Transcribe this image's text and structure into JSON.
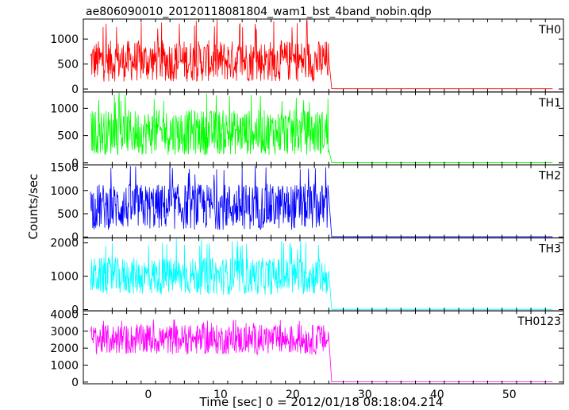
{
  "title": "ae806090010_20120118081804_wam1_bst_4band_nobin.qdp",
  "xlabel": "Time [sec] 0 = 2012/01/18 08:18:04.214",
  "ylabel": "Counts/sec",
  "chart_data": {
    "type": "line",
    "title": "ae806090010_20120118081804_wam1_bst_4band_nobin.qdp",
    "xlabel": "Time [sec] 0 = 2012/01/18 08:18:04.214",
    "ylabel": "Counts/sec",
    "xlim": [
      -9,
      57.5
    ],
    "xticks": [
      0,
      10,
      20,
      30,
      40,
      50
    ],
    "xtick_labels": [
      "0",
      "10",
      "20",
      "30",
      "40",
      "50"
    ],
    "grid": false,
    "legend": "none",
    "burst_start": -8,
    "burst_end": 25,
    "data_end": 56,
    "panels": [
      {
        "name": "TH0",
        "color": "#ff0000",
        "ylim": [
          -60,
          1400
        ],
        "yticks": [
          0,
          500,
          1000
        ],
        "ytick_labels": [
          "0",
          "500",
          "1000"
        ],
        "burst_mean": 560,
        "burst_spread": 520,
        "burst_min": 80,
        "burst_max": 1400,
        "post_level": 5
      },
      {
        "name": "TH1",
        "color": "#00ff00",
        "ylim": [
          -40,
          1300
        ],
        "yticks": [
          0,
          500,
          1000
        ],
        "ytick_labels": [
          "0",
          "500",
          "1000"
        ],
        "burst_mean": 560,
        "burst_spread": 520,
        "burst_min": 80,
        "burst_max": 1300,
        "post_level": 5
      },
      {
        "name": "TH2",
        "color": "#0000ff",
        "ylim": [
          -20,
          1550
        ],
        "yticks": [
          0,
          500,
          1000,
          1500
        ],
        "ytick_labels": [
          "0",
          "500",
          "1000",
          "1500"
        ],
        "burst_mean": 650,
        "burst_spread": 620,
        "burst_min": 80,
        "burst_max": 1550,
        "post_level": 5
      },
      {
        "name": "TH3",
        "color": "#00ffff",
        "ylim": [
          -40,
          2150
        ],
        "yticks": [
          0,
          1000,
          2000
        ],
        "ytick_labels": [
          "0",
          "1000",
          "2000"
        ],
        "burst_mean": 1000,
        "burst_spread": 700,
        "burst_min": 300,
        "burst_max": 2150,
        "post_level": 5
      },
      {
        "name": "TH0123",
        "color": "#ff00ff",
        "ylim": [
          -100,
          4200
        ],
        "yticks": [
          0,
          1000,
          2000,
          3000,
          4000
        ],
        "ytick_labels": [
          "0",
          "1000",
          "2000",
          "3000",
          "4000"
        ],
        "burst_mean": 2500,
        "burst_spread": 1100,
        "burst_min": 1200,
        "burst_max": 3700,
        "post_level": 10
      }
    ]
  }
}
